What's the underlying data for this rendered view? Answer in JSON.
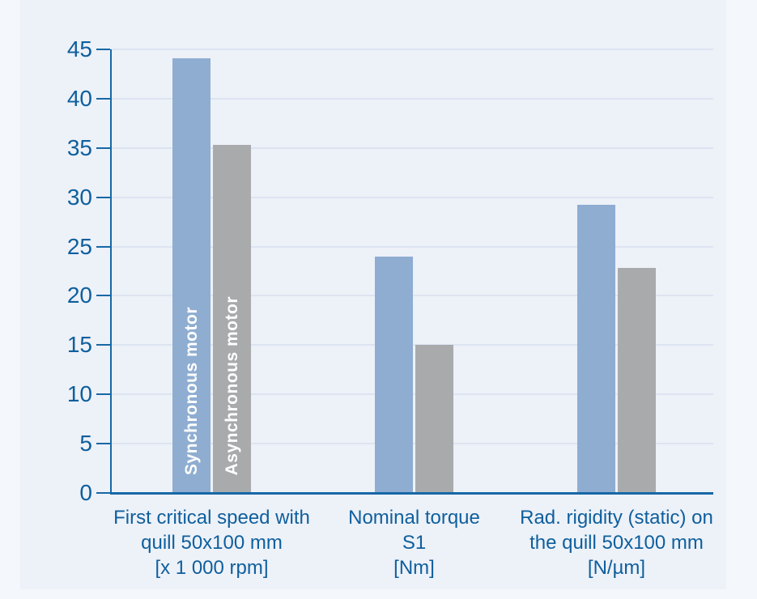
{
  "chart_data": {
    "type": "bar",
    "title": "",
    "xlabel": "",
    "ylabel": "",
    "ylim": [
      0,
      45
    ],
    "ytick_step": 5,
    "yticks": [
      0,
      5,
      10,
      15,
      20,
      25,
      30,
      35,
      40,
      45
    ],
    "grid": "horizontal",
    "legend_position": "vertical-labels-inside-first-group-bars",
    "categories": [
      {
        "lines": [
          "First critical speed with",
          "quill 50x100 mm",
          "[x 1 000 rpm]"
        ]
      },
      {
        "lines": [
          "Nominal torque",
          "S1",
          "[Nm]"
        ]
      },
      {
        "lines": [
          "Rad. rigidity (static) on",
          "the quill 50x100 mm",
          "[N/µm]"
        ]
      }
    ],
    "series": [
      {
        "name": "Synchronous motor",
        "values": [
          44.1,
          24,
          29.2
        ],
        "color": "#8fadd1"
      },
      {
        "name": "Asynchronous motor",
        "values": [
          35.3,
          15,
          22.8
        ],
        "color": "#a9aaac"
      }
    ],
    "colors": {
      "axis": "#1668a6",
      "baseline": "#1668a6",
      "gridline": "#dde4f1",
      "tick_label": "#0e5f9d",
      "category_label": "#0e5f9d",
      "bar_label_text": "#ffffff",
      "panel_background": "#edf1f8",
      "page_background": "#f4f7fb"
    }
  }
}
